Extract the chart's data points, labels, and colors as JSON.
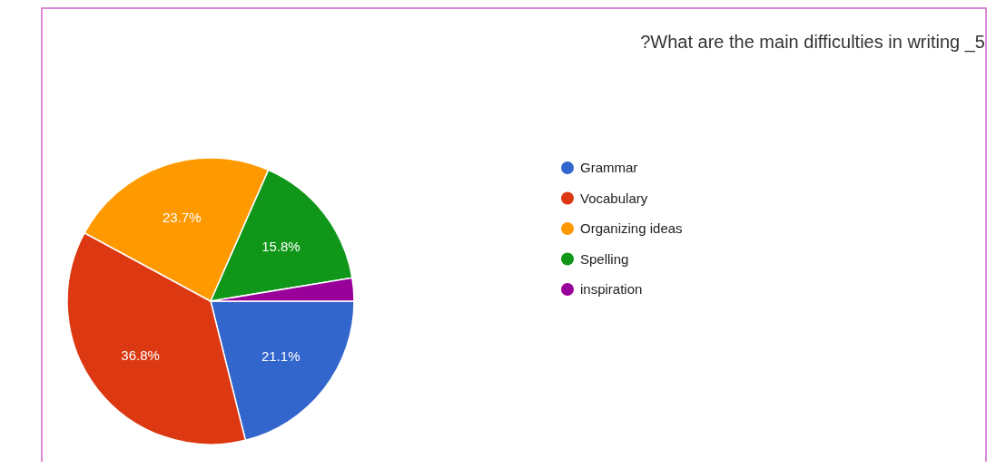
{
  "chart_data": {
    "type": "pie",
    "title": "?What are the main difficulties in writing _5",
    "categories": [
      "Grammar",
      "Vocabulary",
      "Organizing ideas",
      "Spelling",
      "inspiration"
    ],
    "values": [
      21.1,
      36.8,
      23.7,
      15.8,
      2.6
    ],
    "colors": [
      "#3366cc",
      "#dc3912",
      "#ff9900",
      "#109618",
      "#990099"
    ],
    "value_labels": [
      "21.1%",
      "36.8%",
      "23.7%",
      "15.8%",
      null
    ],
    "legend": "right"
  }
}
